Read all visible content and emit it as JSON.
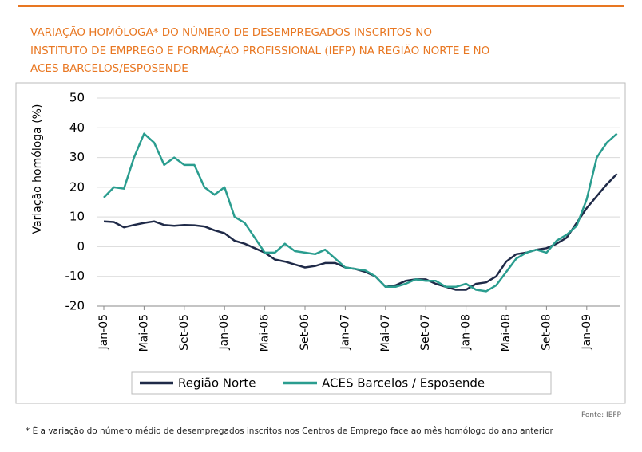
{
  "chart_data": {
    "type": "line",
    "title": [
      "VARIAÇÃO HOMÓLOGA* DO NÚMERO DE DESEMPREGADOS INSCRITOS NO",
      "INSTITUTO DE EMPREGO E FORMAÇÃO PROFISSIONAL (IEFP) NA REGIÃO NORTE E NO",
      "ACES BARCELOS/ESPOSENDE"
    ],
    "y_label": "Variação homóloga (%)",
    "source": "Fonte: IEFP",
    "footnote": "* É a variação do número médio de desempregados inscritos nos Centros de Emprego face ao mês homólogo do ano anterior",
    "categories": [
      "Jan-05",
      null,
      null,
      null,
      "Mai-05",
      null,
      null,
      null,
      "Set-05",
      null,
      null,
      null,
      "Jan-06",
      null,
      null,
      null,
      "Mai-06",
      null,
      null,
      null,
      "Set-06",
      null,
      null,
      null,
      "Jan-07",
      null,
      null,
      null,
      "Mai-07",
      null,
      null,
      null,
      "Set-07",
      null,
      null,
      null,
      "Jan-08",
      null,
      null,
      null,
      "Mai-08",
      null,
      null,
      null,
      "Set-08",
      null,
      null,
      null,
      "Jan-09",
      null,
      null,
      null
    ],
    "series": [
      {
        "name": "Região Norte",
        "color": "#1f2a48",
        "values": [
          8.5,
          8.3,
          6.5,
          7.3,
          8,
          8.5,
          7.3,
          7,
          7.3,
          7.2,
          6.8,
          5.5,
          4.5,
          2,
          1,
          -0.5,
          -2,
          -4.3,
          -5,
          -6,
          -7,
          -6.5,
          -5.5,
          -5.5,
          -7,
          -7.5,
          -8.5,
          -10,
          -13.5,
          -13,
          -11.5,
          -11,
          -11,
          -12.5,
          -13.5,
          -14.5,
          -14.5,
          -12.5,
          -12,
          -10,
          -5,
          -2.5,
          -2,
          -1,
          -0.5,
          1,
          3,
          8,
          13,
          17,
          21,
          24.5
        ]
      },
      {
        "name": "ACES Barcelos / Esposende",
        "color": "#2a9d8f",
        "values": [
          16.5,
          20,
          19.5,
          30,
          38,
          35,
          27.5,
          30,
          27.5,
          27.5,
          20,
          17.5,
          20,
          10,
          8,
          3,
          -2,
          -2,
          1,
          -1.5,
          -2,
          -2.5,
          -1,
          -4,
          -7,
          -7.5,
          -8,
          -10,
          -13.5,
          -13.5,
          -12.5,
          -11,
          -11.5,
          -11.5,
          -13.5,
          -13.5,
          -12.5,
          -14.5,
          -15,
          -13,
          -8.5,
          -4,
          -2,
          -1,
          -2,
          2,
          4,
          7,
          16,
          30,
          35,
          38
        ]
      }
    ],
    "ylim": [
      -20,
      50
    ],
    "yticks": [
      -20,
      -10,
      0,
      10,
      20,
      30,
      40,
      50
    ],
    "grid": true,
    "legend": "bottom"
  }
}
